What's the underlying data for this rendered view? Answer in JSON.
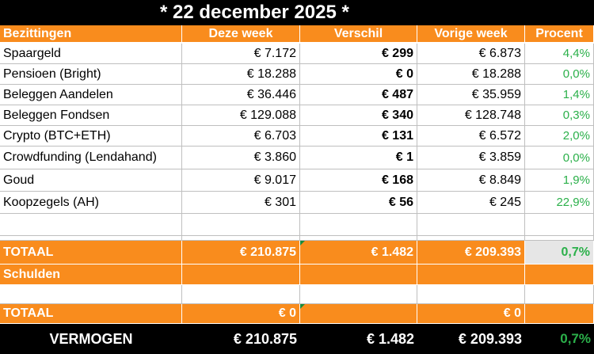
{
  "title": "* 22 december 2025 *",
  "headers": [
    "Bezittingen",
    "Deze week",
    "Verschil",
    "Vorige week",
    "Procent"
  ],
  "rows": [
    {
      "name": "Spaargeld",
      "this_week": "€ 7.172",
      "diff": "€ 299",
      "last_week": "€ 6.873",
      "pct": "4,4%"
    },
    {
      "name": "Pensioen (Bright)",
      "this_week": "€ 18.288",
      "diff": "€ 0",
      "last_week": "€ 18.288",
      "pct": "0,0%"
    },
    {
      "name": "Beleggen Aandelen",
      "this_week": "€ 36.446",
      "diff": "€ 487",
      "last_week": "€ 35.959",
      "pct": "1,4%"
    },
    {
      "name": "Beleggen Fondsen",
      "this_week": "€ 129.088",
      "diff": "€ 340",
      "last_week": "€ 128.748",
      "pct": "0,3%"
    },
    {
      "name": "Crypto (BTC+ETH)",
      "this_week": "€ 6.703",
      "diff": "€ 131",
      "last_week": "€ 6.572",
      "pct": "2,0%"
    },
    {
      "name": "Crowdfunding (Lendahand)",
      "this_week": "€ 3.860",
      "diff": "€ 1",
      "last_week": "€ 3.859",
      "pct": "0,0%"
    },
    {
      "name": "Goud",
      "this_week": "€ 9.017",
      "diff": "€ 168",
      "last_week": "€ 8.849",
      "pct": "1,9%"
    },
    {
      "name": "Koopzegels (AH)",
      "this_week": "€ 301",
      "diff": "€ 56",
      "last_week": "€ 245",
      "pct": "22,9%"
    }
  ],
  "assets_total": {
    "label": "TOTAAL",
    "this_week": "€ 210.875",
    "diff": "€ 1.482",
    "last_week": "€ 209.393",
    "pct": "0,7%"
  },
  "debts_header": "Schulden",
  "debts_total": {
    "label": "TOTAAL",
    "this_week": "€ 0",
    "diff": "",
    "last_week": "€ 0",
    "pct": ""
  },
  "net_worth": {
    "label": "VERMOGEN",
    "this_week": "€ 210.875",
    "diff": "€ 1.482",
    "last_week": "€ 209.393",
    "pct": "0,7%"
  },
  "colors": {
    "orange": "#f98c1d",
    "green": "#2bb04a",
    "black": "#000000"
  }
}
